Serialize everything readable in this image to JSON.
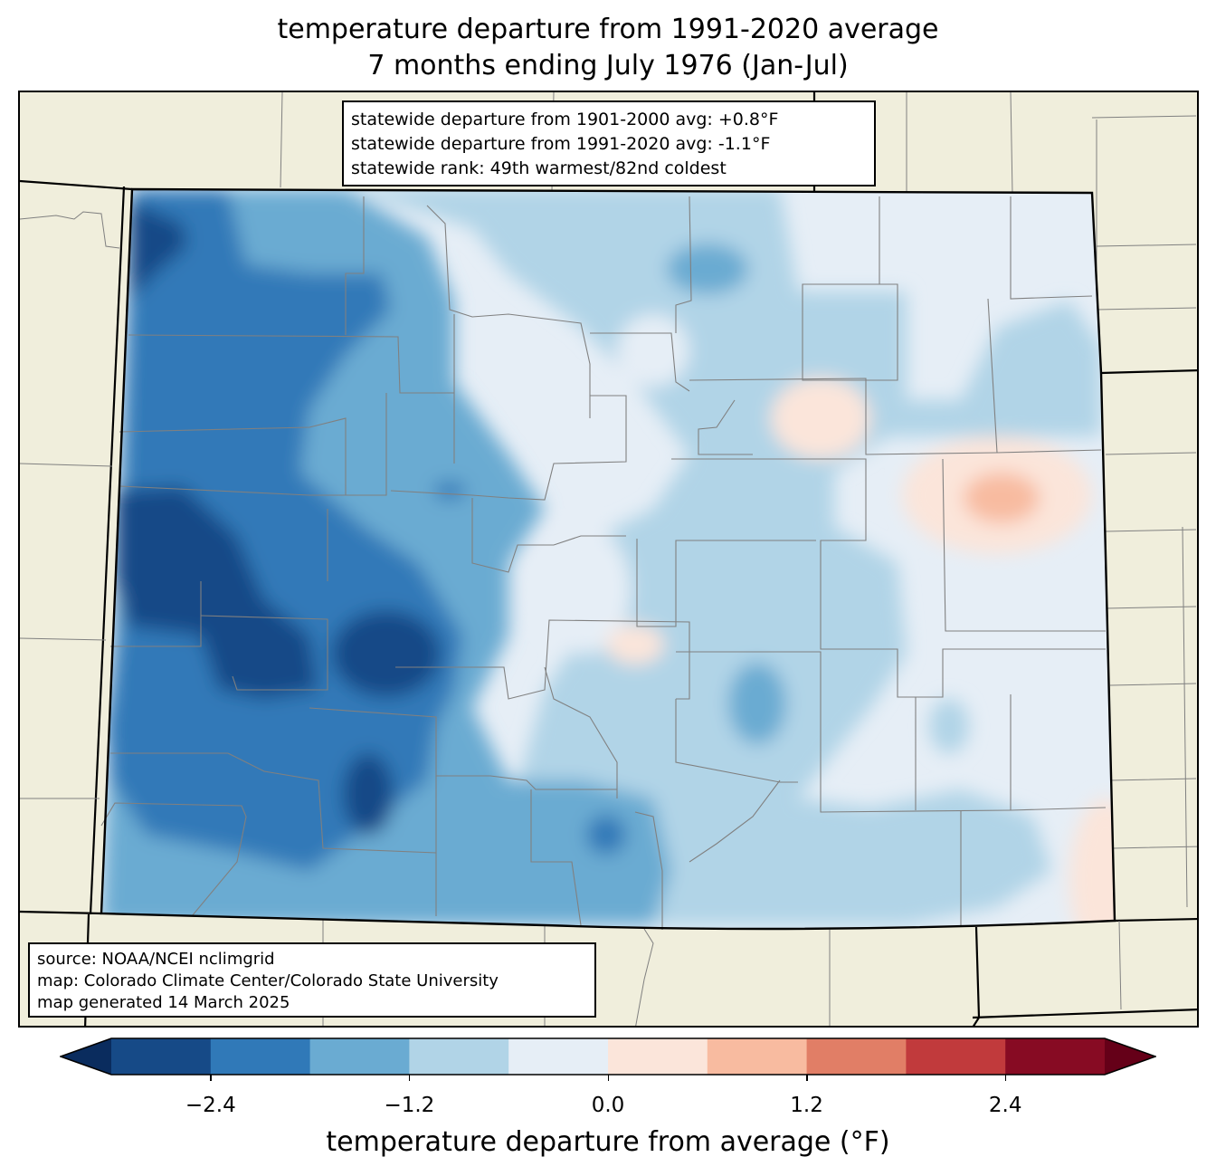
{
  "title_line1": "temperature departure from 1991-2020 average",
  "title_line2": "7 months ending July 1976 (Jan-Jul)",
  "stats": {
    "line1": "statewide departure from 1901-2000 avg: +0.8°F",
    "line2": "statewide departure from 1991-2020 avg: -1.1°F",
    "line3": "statewide rank: 49th warmest/82nd coldest"
  },
  "source": {
    "line1": "source: NOAA/NCEI nclimgrid",
    "line2": "map: Colorado Climate Center/Colorado State University",
    "line3": "map generated 14 March 2025"
  },
  "colorbar": {
    "label": "temperature departure from average (°F)",
    "min": -3.0,
    "max": 3.0,
    "step": 0.6,
    "ticks": [
      "−2.4",
      "−1.2",
      "0.0",
      "1.2",
      "2.4"
    ],
    "tick_values": [
      -2.4,
      -1.2,
      0.0,
      1.2,
      2.4
    ],
    "colors": [
      "#164a87",
      "#3079b8",
      "#6aabd2",
      "#b1d4e7",
      "#e6eef6",
      "#fbe5da",
      "#f8bba0",
      "#e17e66",
      "#c13a3c",
      "#870b23"
    ],
    "under_color": "#0a2c5e",
    "over_color": "#650018"
  },
  "colors": {
    "land": "#f0eedc",
    "state_border": "#000000",
    "county_border": "#808080"
  }
}
